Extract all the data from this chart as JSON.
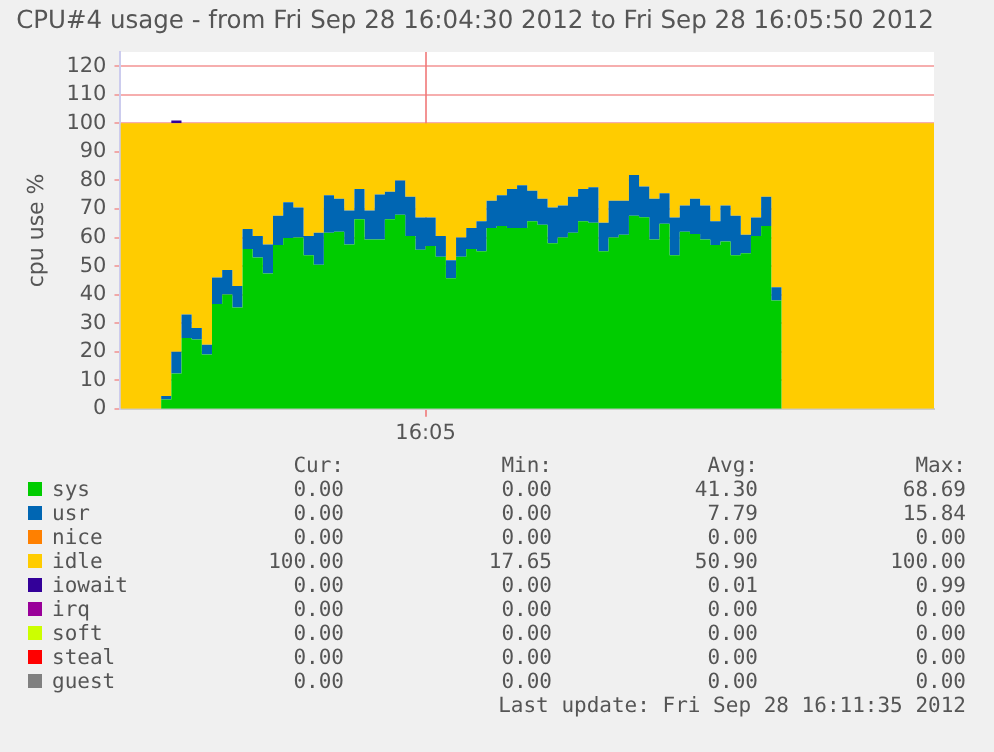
{
  "chart_data": {
    "type": "area",
    "stacked": true,
    "title": "CPU#4 usage - from Fri Sep 28 16:04:30 2012 to Fri Sep 28 16:05:50 2012",
    "ylabel": "cpu use %",
    "categories": [
      null,
      null,
      null,
      null,
      null,
      null,
      null,
      null,
      null,
      null,
      null,
      null,
      null,
      null,
      null,
      null,
      null,
      null,
      null,
      null,
      null,
      null,
      null,
      null,
      null,
      null,
      null,
      null,
      null,
      null,
      "16:05",
      null,
      null,
      null,
      null,
      null,
      null,
      null,
      null,
      null,
      null,
      null,
      null,
      null,
      null,
      null,
      null,
      null,
      null,
      null,
      null,
      null,
      null,
      null,
      null,
      null,
      null,
      null,
      null,
      null,
      null,
      null,
      null,
      null,
      null,
      null,
      null,
      null,
      null,
      null,
      null,
      null,
      null,
      null,
      null,
      null,
      null,
      null,
      null,
      null,
      null
    ],
    "series": [
      {
        "name": "sys",
        "color": "#00cc00",
        "values": [
          0,
          0,
          0,
          0,
          0,
          3.3,
          12.4,
          24.8,
          24.3,
          19,
          36.7,
          40,
          35.5,
          56,
          53,
          47.4,
          57.4,
          59.8,
          60,
          53.8,
          50.5,
          61.7,
          62,
          57.6,
          66.4,
          59.3,
          59.3,
          66.4,
          68,
          60.5,
          55.7,
          57,
          53.3,
          45.7,
          53.3,
          56,
          55.2,
          63.3,
          64,
          63.3,
          63.3,
          65.7,
          64.5,
          58,
          60,
          61.7,
          65.7,
          65.2,
          55.2,
          60,
          61,
          67.6,
          67.1,
          59.3,
          64.8,
          53.8,
          62,
          61.2,
          59.3,
          57.4,
          58.6,
          53.8,
          54.5,
          60.5,
          64,
          37.9,
          0,
          0,
          0,
          0,
          0,
          0,
          0,
          0,
          0,
          0,
          0,
          0,
          0,
          0,
          0
        ]
      },
      {
        "name": "usr",
        "color": "#0066b3",
        "values": [
          0,
          0,
          0,
          0,
          0,
          1.2,
          7.6,
          8.2,
          4,
          3.4,
          9.3,
          8.6,
          7.5,
          7,
          7.5,
          10.2,
          10.2,
          12.6,
          10.5,
          6.7,
          11.2,
          13.1,
          11.6,
          11.9,
          10.6,
          10.2,
          15.8,
          9.6,
          12,
          13.8,
          11.3,
          10,
          7.2,
          6.3,
          6.7,
          7.3,
          10.5,
          9.6,
          10.8,
          13.7,
          15,
          10.7,
          9.1,
          12.5,
          11.2,
          12.6,
          11.3,
          12.4,
          10,
          12.9,
          11.9,
          14.3,
          10.8,
          14.3,
          10.7,
          13.2,
          9.2,
          12.4,
          11.9,
          8.3,
          12.6,
          13.8,
          6.5,
          6.5,
          10.3,
          4.7,
          0,
          0,
          0,
          0,
          0,
          0,
          0,
          0,
          0,
          0,
          0,
          0,
          0,
          0,
          0
        ]
      },
      {
        "name": "nice",
        "color": "#ff8000",
        "values": [
          null,
          null,
          null,
          null,
          null,
          null,
          null,
          null,
          null,
          null,
          null,
          null,
          null,
          null,
          null,
          null,
          null,
          null,
          null,
          null,
          null,
          null,
          null,
          null,
          null,
          null,
          null,
          null,
          null,
          null,
          null,
          null,
          null,
          null,
          null,
          null,
          null,
          null,
          null,
          null,
          null,
          null,
          null,
          null,
          null,
          null,
          null,
          null,
          null,
          null,
          null,
          null,
          null,
          null,
          null,
          null,
          null,
          null,
          null,
          null,
          null,
          null,
          null,
          null,
          null,
          null,
          null,
          null,
          null,
          null,
          null,
          null,
          null,
          null,
          null,
          null,
          null,
          null,
          null,
          null,
          null
        ]
      },
      {
        "name": "idle",
        "color": "#ffcc00",
        "values": [
          100,
          100,
          100,
          100,
          100,
          95.5,
          80,
          67,
          71.7,
          77.6,
          54,
          51.4,
          57,
          37,
          39.5,
          42.4,
          32.4,
          27.6,
          29.5,
          39.5,
          38.3,
          25.2,
          26.4,
          30.5,
          23,
          30.5,
          24.9,
          24,
          20,
          25.7,
          33,
          33,
          39.5,
          48,
          40,
          36.7,
          34.3,
          27.1,
          25.2,
          23,
          21.7,
          23.6,
          26.4,
          29.5,
          28.8,
          25.7,
          23,
          22.4,
          34.8,
          27.1,
          27.1,
          18.1,
          22.1,
          26.4,
          24.5,
          33,
          28.8,
          26.4,
          28.8,
          34.3,
          28.8,
          32.4,
          39,
          33,
          25.7,
          57.4,
          100,
          100,
          100,
          100,
          100,
          100,
          100,
          100,
          100,
          100,
          100,
          100,
          100,
          100,
          100
        ]
      },
      {
        "name": "iowait",
        "color": "#330099",
        "values": [
          0,
          0,
          0,
          0,
          0,
          0,
          1,
          0,
          0,
          0,
          0,
          0,
          0,
          0,
          0,
          0,
          0,
          0,
          0,
          0,
          0,
          0,
          0,
          0,
          0,
          0,
          0,
          0,
          0,
          0,
          0,
          0,
          0,
          0,
          0,
          0,
          0,
          0,
          0,
          0,
          0,
          0,
          0,
          0,
          0,
          0,
          0,
          0,
          0,
          0,
          0,
          0,
          0,
          0,
          0,
          0,
          0,
          0,
          0,
          0,
          0,
          0,
          0,
          0,
          0,
          0,
          0,
          0,
          0,
          0,
          0,
          0,
          0,
          0,
          0,
          0,
          0,
          0,
          0,
          0,
          0
        ]
      },
      {
        "name": "irq",
        "color": "#990099",
        "values": [
          null,
          null,
          null,
          null,
          null,
          null,
          null,
          null,
          null,
          null,
          null,
          null,
          null,
          null,
          null,
          null,
          null,
          null,
          null,
          null,
          null,
          null,
          null,
          null,
          null,
          null,
          null,
          null,
          null,
          null,
          null,
          null,
          null,
          null,
          null,
          null,
          null,
          null,
          null,
          null,
          null,
          null,
          null,
          null,
          null,
          null,
          null,
          null,
          null,
          null,
          null,
          null,
          null,
          null,
          null,
          null,
          null,
          null,
          null,
          null,
          null,
          null,
          null,
          null,
          null,
          null,
          null,
          null,
          null,
          null,
          null,
          null,
          null,
          null,
          null,
          null,
          null,
          null,
          null,
          null,
          null
        ]
      },
      {
        "name": "soft",
        "color": "#ccff00",
        "values": [
          null,
          null,
          null,
          null,
          null,
          null,
          null,
          null,
          null,
          null,
          null,
          null,
          null,
          null,
          null,
          null,
          null,
          null,
          null,
          null,
          null,
          null,
          null,
          null,
          null,
          null,
          null,
          null,
          null,
          null,
          null,
          null,
          null,
          null,
          null,
          null,
          null,
          null,
          null,
          null,
          null,
          null,
          null,
          null,
          null,
          null,
          null,
          null,
          null,
          null,
          null,
          null,
          null,
          null,
          null,
          null,
          null,
          null,
          null,
          null,
          null,
          null,
          null,
          null,
          null,
          null,
          null,
          null,
          null,
          null,
          null,
          null,
          null,
          null,
          null,
          null,
          null,
          null,
          null,
          null,
          null
        ]
      },
      {
        "name": "steal",
        "color": "#ff0000",
        "values": [
          null,
          null,
          null,
          null,
          null,
          null,
          null,
          null,
          null,
          null,
          null,
          null,
          null,
          null,
          null,
          null,
          null,
          null,
          null,
          null,
          null,
          null,
          null,
          null,
          null,
          null,
          null,
          null,
          null,
          null,
          null,
          null,
          null,
          null,
          null,
          null,
          null,
          null,
          null,
          null,
          null,
          null,
          null,
          null,
          null,
          null,
          null,
          null,
          null,
          null,
          null,
          null,
          null,
          null,
          null,
          null,
          null,
          null,
          null,
          null,
          null,
          null,
          null,
          null,
          null,
          null,
          null,
          null,
          null,
          null,
          null,
          null,
          null,
          null,
          null,
          null,
          null,
          null,
          null,
          null,
          null
        ]
      },
      {
        "name": "guest",
        "color": "#808080",
        "values": [
          null,
          null,
          null,
          null,
          null,
          null,
          null,
          null,
          null,
          null,
          null,
          null,
          null,
          null,
          null,
          null,
          null,
          null,
          null,
          null,
          null,
          null,
          null,
          null,
          null,
          null,
          null,
          null,
          null,
          null,
          null,
          null,
          null,
          null,
          null,
          null,
          null,
          null,
          null,
          null,
          null,
          null,
          null,
          null,
          null,
          null,
          null,
          null,
          null,
          null,
          null,
          null,
          null,
          null,
          null,
          null,
          null,
          null,
          null,
          null,
          null,
          null,
          null,
          null,
          null,
          null,
          null,
          null,
          null,
          null,
          null,
          null,
          null,
          null,
          null,
          null,
          null,
          null,
          null,
          null,
          null
        ]
      }
    ],
    "ylim": [
      0,
      125
    ],
    "yticks": [
      0,
      10,
      20,
      30,
      40,
      50,
      60,
      70,
      80,
      90,
      100,
      110,
      120
    ],
    "grid": true,
    "legend": "bottom",
    "annotations": [
      "Cur:",
      "Min:",
      "Avg:",
      "Max:",
      "0.00",
      "0.00",
      "41.30",
      "68.69",
      "0.00",
      "0.00",
      "7.79",
      "15.84",
      "0.00",
      "0.00",
      "0.00",
      "0.00",
      "100.00",
      "17.65",
      "50.90",
      "100.00",
      "0.00",
      "0.00",
      "0.01",
      "0.99",
      "0.00",
      "0.00",
      "0.00",
      "0.00",
      "0.00",
      "0.00",
      "0.00",
      "0.00",
      "0.00",
      "0.00",
      "0.00",
      "0.00",
      "0.00",
      "0.00",
      "0.00",
      "0.00",
      "Last update: Fri Sep 28 16:11:35 2012"
    ]
  }
}
